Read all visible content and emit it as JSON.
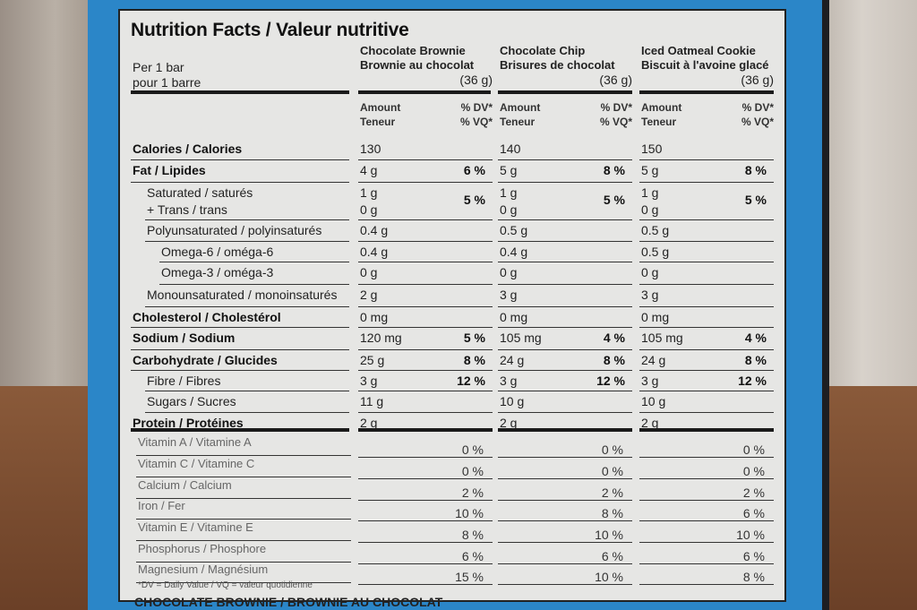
{
  "title": "Nutrition Facts / Valeur nutritive",
  "per_line1": "Per 1 bar",
  "per_line2": "pour 1 barre",
  "products": [
    {
      "en": "Chocolate Brownie",
      "fr": "Brownie au chocolat",
      "size": "(36 g)"
    },
    {
      "en": "Chocolate Chip",
      "fr": "Brisures de chocolat",
      "size": "(36 g)"
    },
    {
      "en": "Iced Oatmeal Cookie",
      "fr": "Biscuit à l'avoine glacé",
      "size": "(36 g)"
    }
  ],
  "col_header": {
    "amount": "Amount",
    "teneur": "Teneur",
    "dv": "% DV*",
    "vq": "% VQ*"
  },
  "rows": [
    {
      "label": "Calories / Calories",
      "style": "b",
      "vals": [
        [
          "130",
          ""
        ],
        [
          "140",
          ""
        ],
        [
          "150",
          ""
        ]
      ]
    },
    {
      "label": "Fat / Lipides",
      "style": "b",
      "vals": [
        [
          "4 g",
          "6 %"
        ],
        [
          "5 g",
          "8 %"
        ],
        [
          "5 g",
          "8 %"
        ]
      ]
    },
    {
      "label": "Saturated / saturés",
      "label2": "+ Trans / trans",
      "style": "i1",
      "vals": [
        [
          "1 g",
          "5 %",
          "0 g"
        ],
        [
          "1 g",
          "5 %",
          "0 g"
        ],
        [
          "1 g",
          "5 %",
          "0 g"
        ]
      ]
    },
    {
      "label": "Polyunsaturated / polyinsaturés",
      "style": "i1",
      "vals": [
        [
          "0.4 g",
          ""
        ],
        [
          "0.5 g",
          ""
        ],
        [
          "0.5 g",
          ""
        ]
      ]
    },
    {
      "label": "Omega-6 / oméga-6",
      "style": "i2",
      "vals": [
        [
          "0.4 g",
          ""
        ],
        [
          "0.4 g",
          ""
        ],
        [
          "0.5 g",
          ""
        ]
      ]
    },
    {
      "label": "Omega-3 / oméga-3",
      "style": "i2",
      "vals": [
        [
          "0 g",
          ""
        ],
        [
          "0 g",
          ""
        ],
        [
          "0 g",
          ""
        ]
      ]
    },
    {
      "label": "Monounsaturated / monoinsaturés",
      "style": "i1",
      "vals": [
        [
          "2 g",
          ""
        ],
        [
          "3 g",
          ""
        ],
        [
          "3 g",
          ""
        ]
      ]
    },
    {
      "label": "Cholesterol / Cholestérol",
      "style": "b",
      "vals": [
        [
          "0 mg",
          ""
        ],
        [
          "0 mg",
          ""
        ],
        [
          "0 mg",
          ""
        ]
      ]
    },
    {
      "label": "Sodium / Sodium",
      "style": "b",
      "vals": [
        [
          "120 mg",
          "5 %"
        ],
        [
          "105 mg",
          "4 %"
        ],
        [
          "105 mg",
          "4 %"
        ]
      ]
    },
    {
      "label": "Carbohydrate / Glucides",
      "style": "b",
      "vals": [
        [
          "25 g",
          "8 %"
        ],
        [
          "24 g",
          "8 %"
        ],
        [
          "24 g",
          "8 %"
        ]
      ]
    },
    {
      "label": "Fibre / Fibres",
      "style": "i1",
      "vals": [
        [
          "3 g",
          "12 %"
        ],
        [
          "3 g",
          "12 %"
        ],
        [
          "3 g",
          "12 %"
        ]
      ]
    },
    {
      "label": "Sugars / Sucres",
      "style": "i1",
      "vals": [
        [
          "11 g",
          ""
        ],
        [
          "10 g",
          ""
        ],
        [
          "10 g",
          ""
        ]
      ]
    },
    {
      "label": "Protein / Protéines",
      "style": "b",
      "vals": [
        [
          "2 g",
          ""
        ],
        [
          "2 g",
          ""
        ],
        [
          "2 g",
          ""
        ]
      ]
    }
  ],
  "vitamins": [
    {
      "label": "Vitamin A / Vitamine A",
      "vals": [
        "0 %",
        "0 %",
        "0 %"
      ]
    },
    {
      "label": "Vitamin C / Vitamine C",
      "vals": [
        "0 %",
        "0 %",
        "0 %"
      ]
    },
    {
      "label": "Calcium / Calcium",
      "vals": [
        "2 %",
        "2 %",
        "2 %"
      ]
    },
    {
      "label": "Iron / Fer",
      "vals": [
        "10 %",
        "8 %",
        "6 %"
      ]
    },
    {
      "label": "Vitamin E / Vitamine E",
      "vals": [
        "8 %",
        "10 %",
        "10 %"
      ]
    },
    {
      "label": "Phosphorus / Phosphore",
      "vals": [
        "6 %",
        "6 %",
        "6 %"
      ]
    },
    {
      "label": "Magnesium / Magnésium",
      "vals": [
        "15 %",
        "10 %",
        "8 %"
      ]
    }
  ],
  "footnote": "*DV = Daily Value / VQ = valeur quotidienne",
  "bottom_text": "CHOCOLATE BROWNIE / BROWNIE AU CHOCOLAT"
}
